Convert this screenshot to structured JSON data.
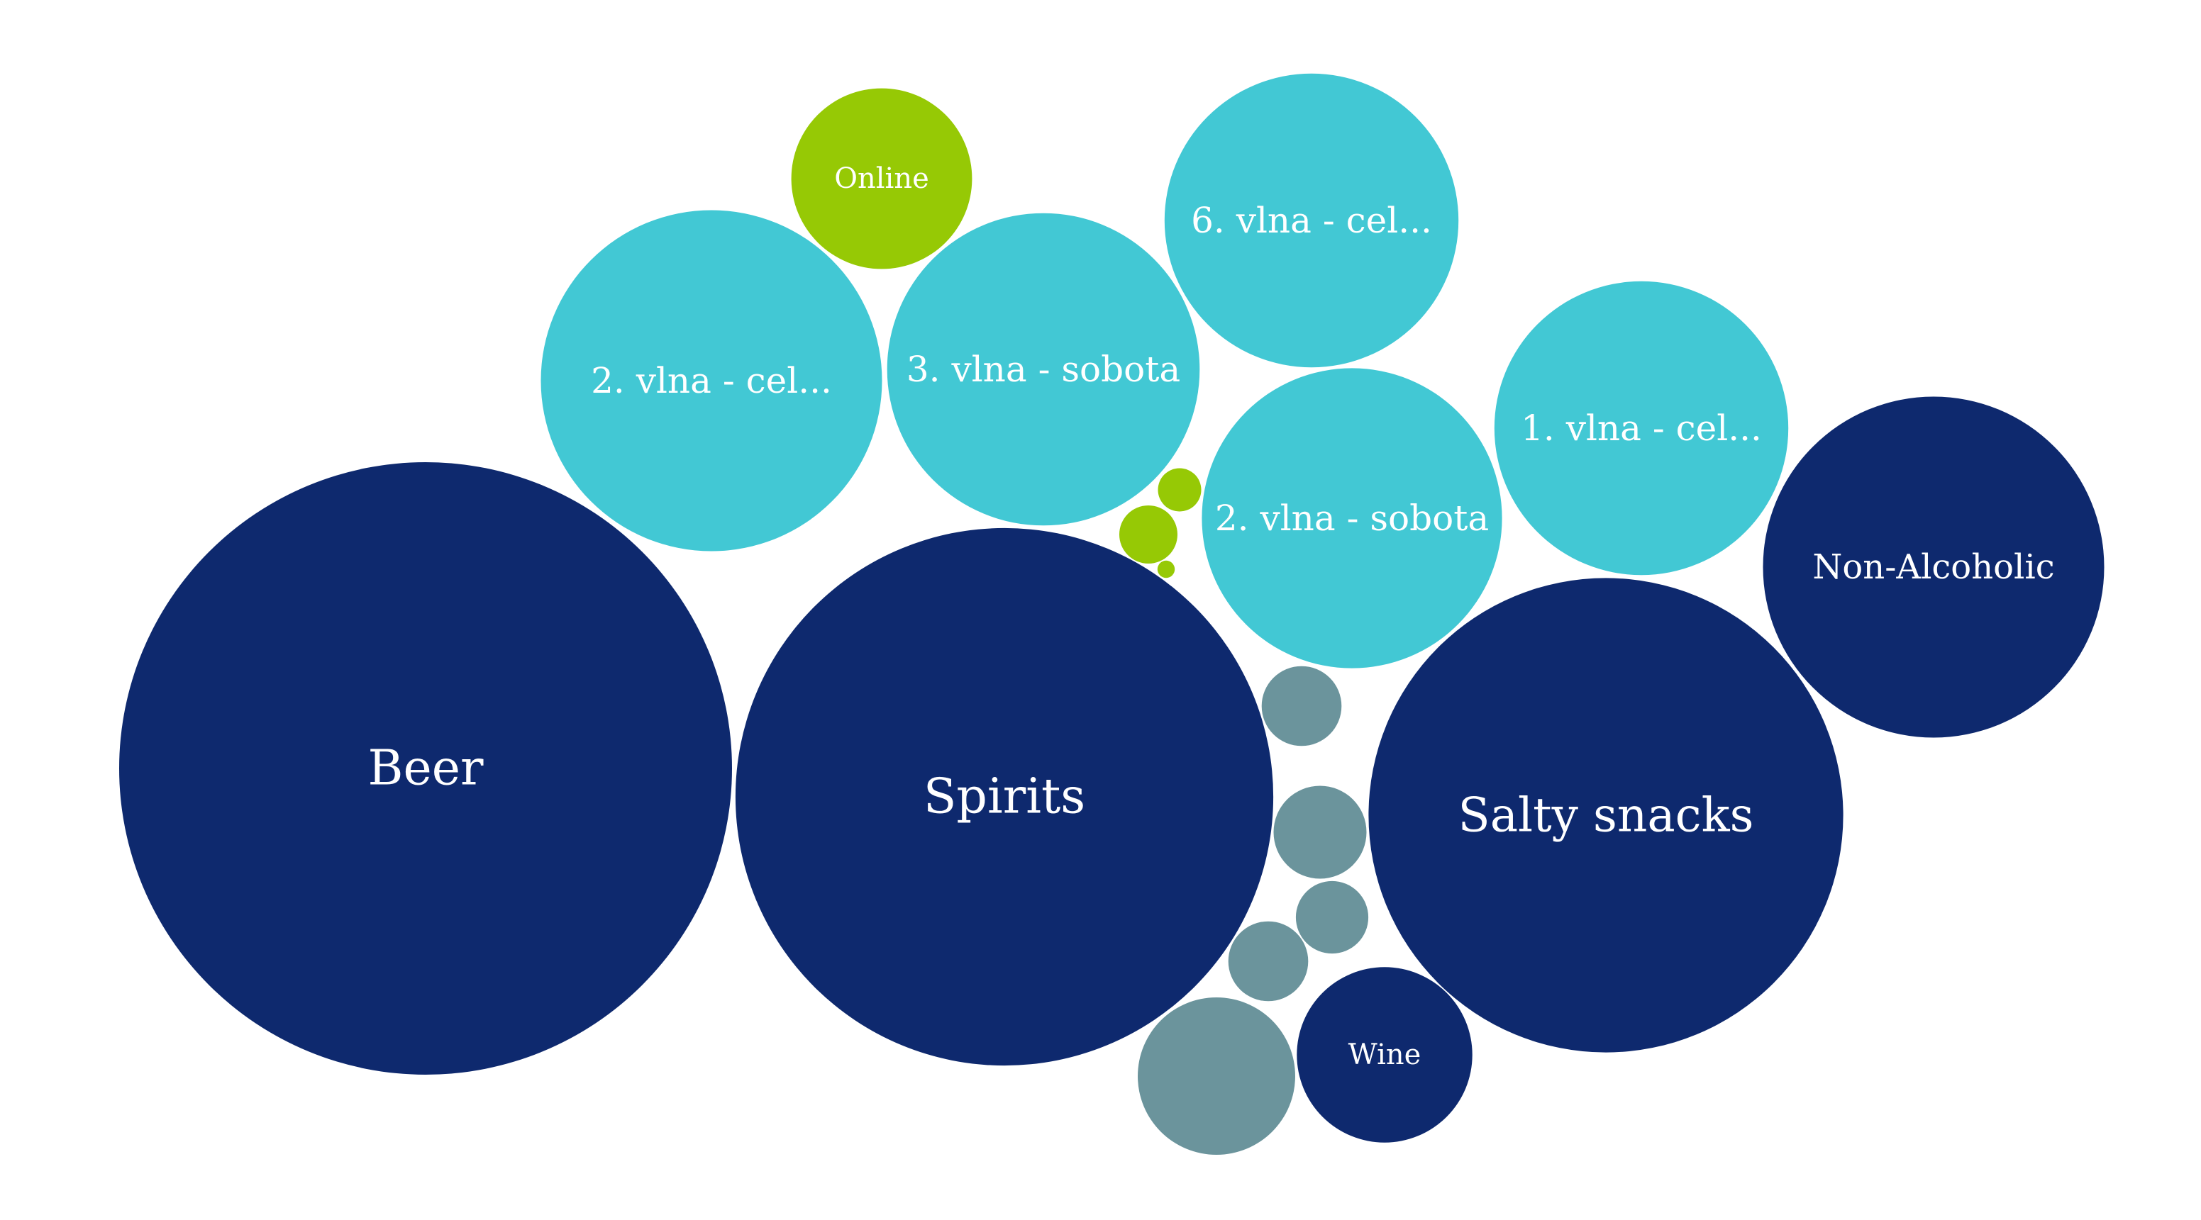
{
  "chart_data": {
    "type": "bubble",
    "colors": {
      "dark_navy": "#0e296e",
      "cyan": "#42c8d4",
      "lime": "#96c905",
      "slate": "#6b949c",
      "text": "#ffffff"
    },
    "bubbles": [
      {
        "label": "Beer",
        "value": 100,
        "color": "dark_navy"
      },
      {
        "label": "Spirits",
        "value": 77,
        "color": "dark_navy"
      },
      {
        "label": "Salty snacks",
        "value": 60,
        "color": "dark_navy"
      },
      {
        "label": "Non-Alcoholic",
        "value": 31,
        "color": "dark_navy"
      },
      {
        "label": "Wine",
        "value": 8.2,
        "color": "dark_navy"
      },
      {
        "label": "2. vlna - cel...",
        "value": 31,
        "color": "cyan"
      },
      {
        "label": "3. vlna - sobota",
        "value": 26,
        "color": "cyan"
      },
      {
        "label": "6. vlna - cel...",
        "value": 23,
        "color": "cyan"
      },
      {
        "label": "2. vlna - sobota",
        "value": 24,
        "color": "cyan"
      },
      {
        "label": "1. vlna - cel...",
        "value": 23,
        "color": "cyan"
      },
      {
        "label": "Online",
        "value": 8.7,
        "color": "lime"
      },
      {
        "label": "",
        "value": 0.5,
        "color": "lime"
      },
      {
        "label": "",
        "value": 0.9,
        "color": "lime"
      },
      {
        "label": "",
        "value": 0.08,
        "color": "lime"
      },
      {
        "label": "",
        "value": 1.7,
        "color": "slate"
      },
      {
        "label": "",
        "value": 2.3,
        "color": "slate"
      },
      {
        "label": "",
        "value": 1.4,
        "color": "slate"
      },
      {
        "label": "",
        "value": 1.7,
        "color": "slate"
      },
      {
        "label": "",
        "value": 6.6,
        "color": "slate"
      }
    ]
  }
}
